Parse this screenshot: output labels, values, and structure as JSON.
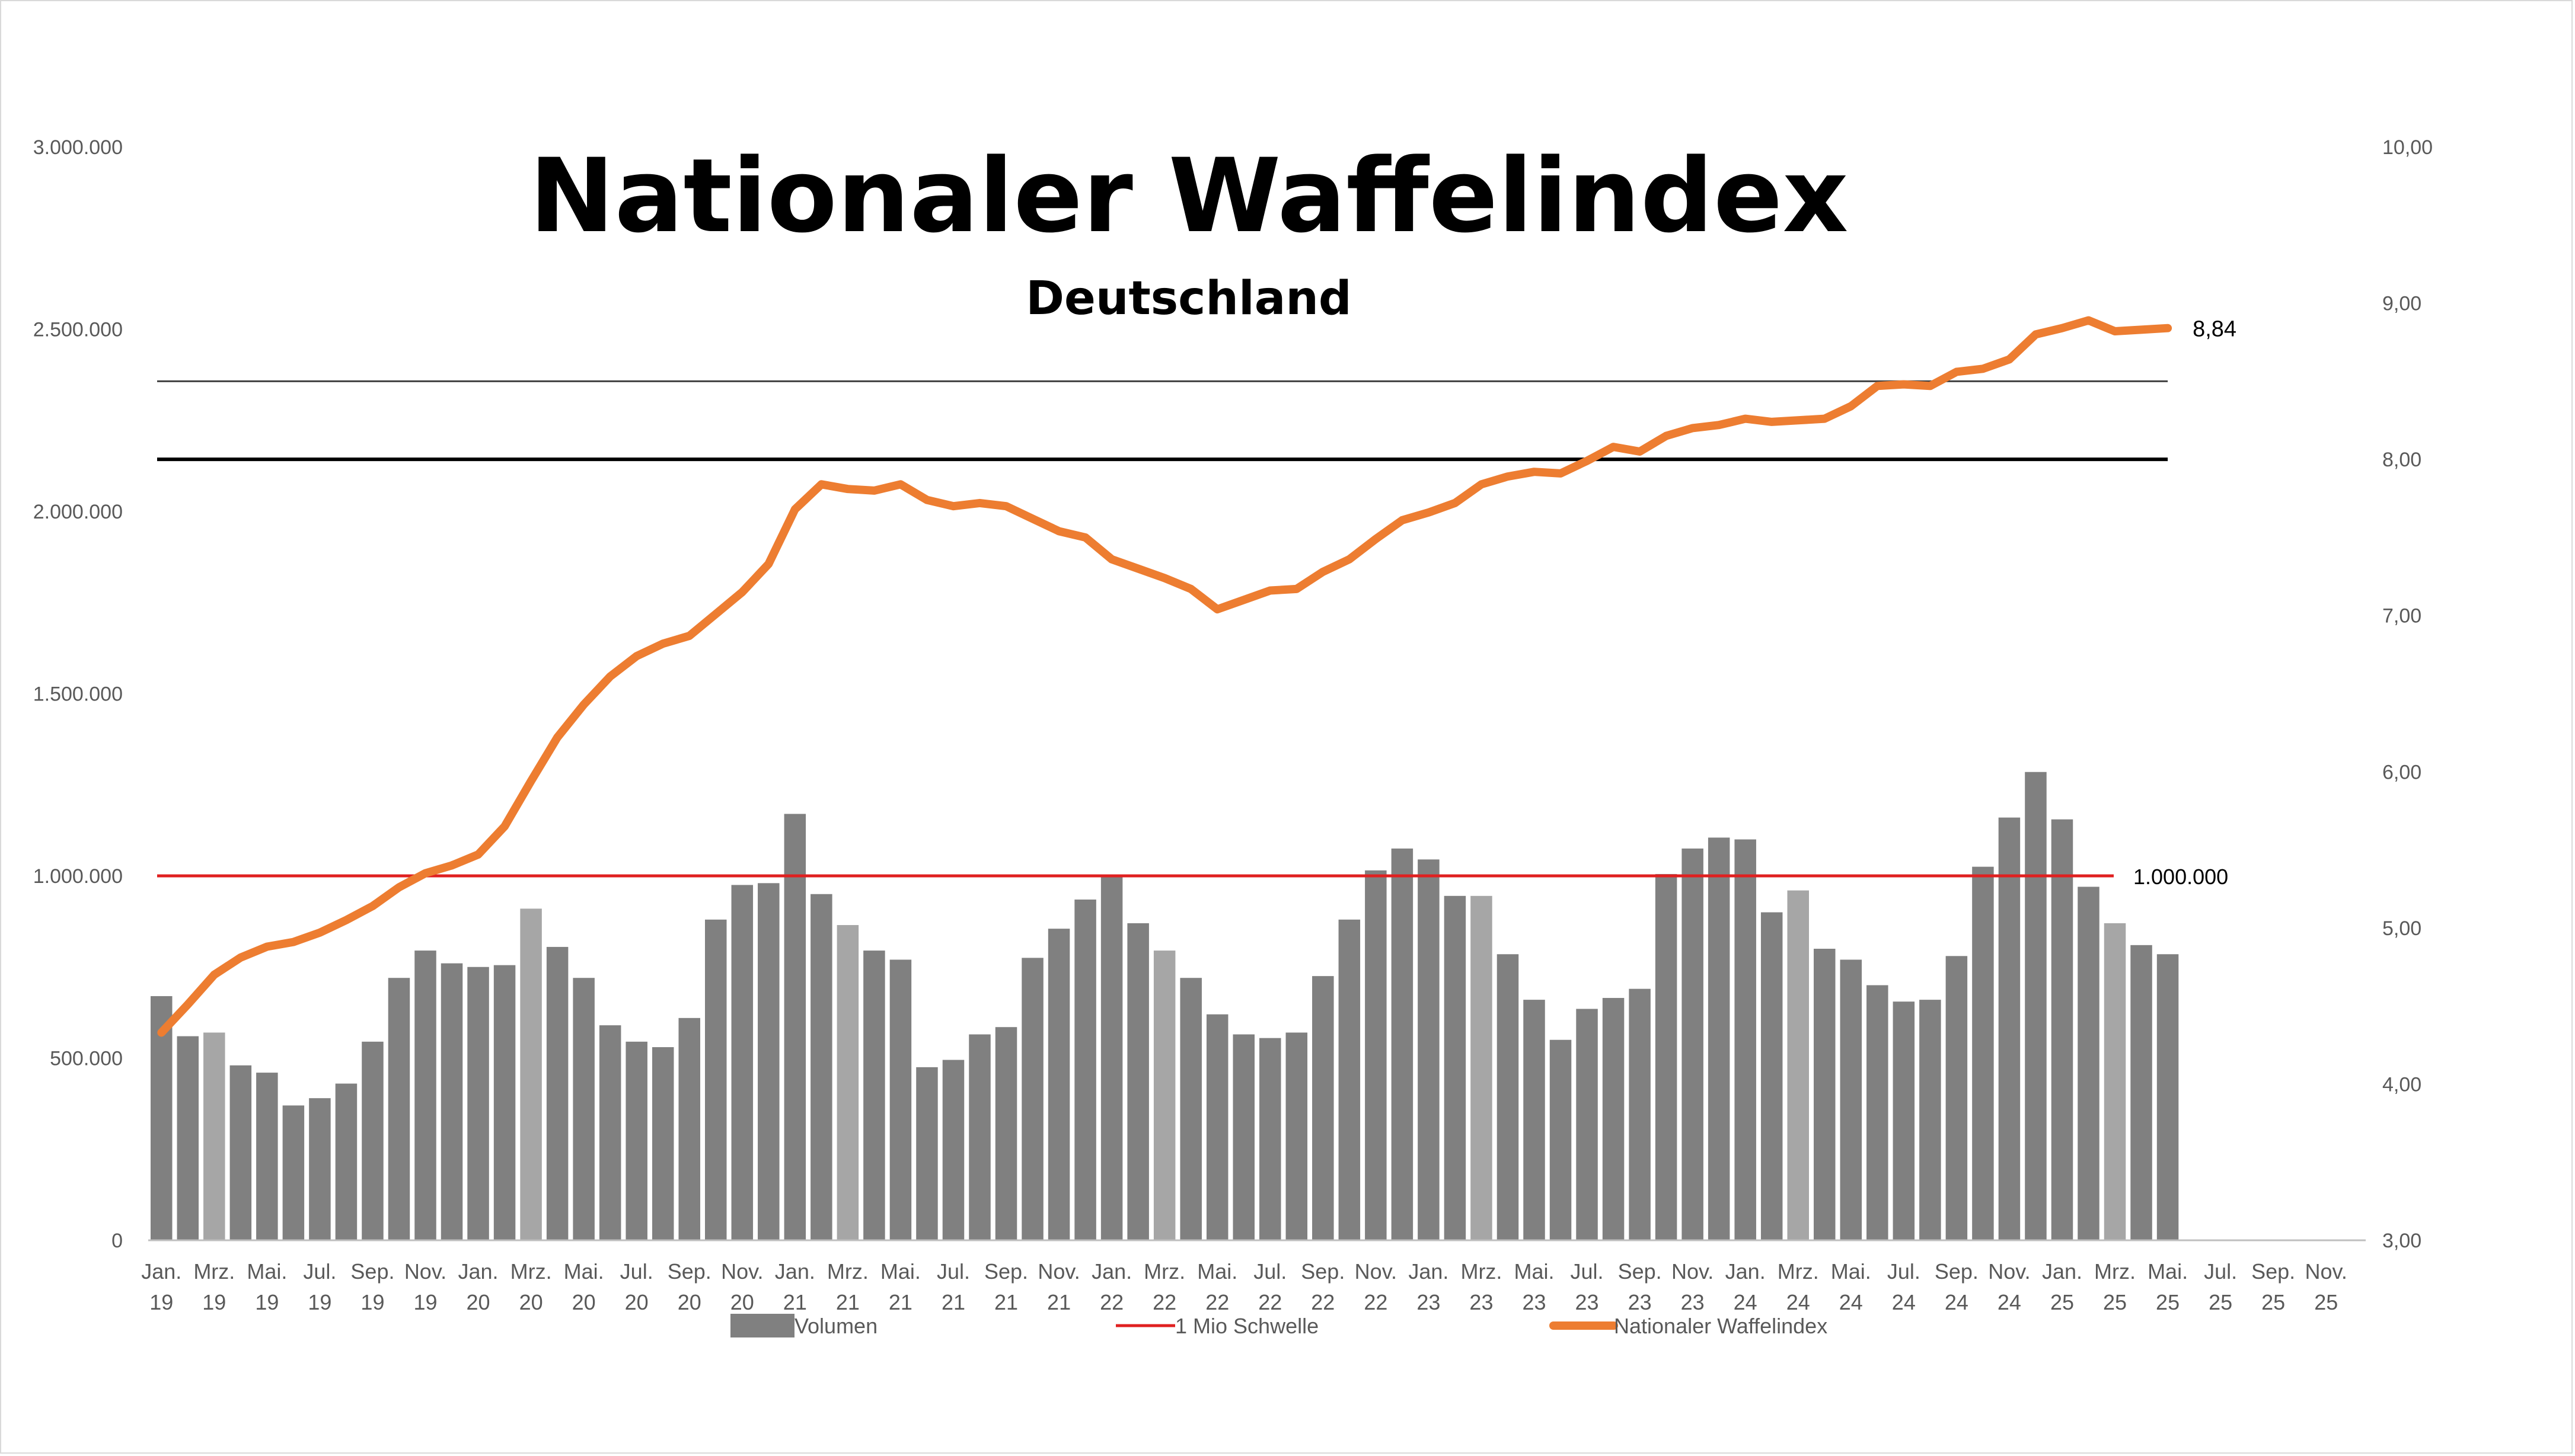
{
  "chart_data": {
    "type": "bar",
    "title": "Nationaler Waffelindex",
    "subtitle": "Deutschland",
    "x_tick_labels": [
      [
        "Jan.",
        "19"
      ],
      [
        "Mrz.",
        "19"
      ],
      [
        "Mai.",
        "19"
      ],
      [
        "Jul.",
        "19"
      ],
      [
        "Sep.",
        "19"
      ],
      [
        "Nov.",
        "19"
      ],
      [
        "Jan.",
        "20"
      ],
      [
        "Mrz.",
        "20"
      ],
      [
        "Mai.",
        "20"
      ],
      [
        "Jul.",
        "20"
      ],
      [
        "Sep.",
        "20"
      ],
      [
        "Nov.",
        "20"
      ],
      [
        "Jan.",
        "21"
      ],
      [
        "Mrz.",
        "21"
      ],
      [
        "Mai.",
        "21"
      ],
      [
        "Jul.",
        "21"
      ],
      [
        "Sep.",
        "21"
      ],
      [
        "Nov.",
        "21"
      ],
      [
        "Jan.",
        "22"
      ],
      [
        "Mrz.",
        "22"
      ],
      [
        "Mai.",
        "22"
      ],
      [
        "Jul.",
        "22"
      ],
      [
        "Sep.",
        "22"
      ],
      [
        "Nov.",
        "22"
      ],
      [
        "Jan.",
        "23"
      ],
      [
        "Mrz.",
        "23"
      ],
      [
        "Mai.",
        "23"
      ],
      [
        "Jul.",
        "23"
      ],
      [
        "Sep.",
        "23"
      ],
      [
        "Nov.",
        "23"
      ],
      [
        "Jan.",
        "24"
      ],
      [
        "Mrz.",
        "24"
      ],
      [
        "Mai.",
        "24"
      ],
      [
        "Jul.",
        "24"
      ],
      [
        "Sep.",
        "24"
      ],
      [
        "Nov.",
        "24"
      ],
      [
        "Jan.",
        "25"
      ],
      [
        "Mrz.",
        "25"
      ],
      [
        "Mai.",
        "25"
      ],
      [
        "Jul.",
        "25"
      ],
      [
        "Sep.",
        "25"
      ],
      [
        "Nov.",
        "25"
      ]
    ],
    "y_left": {
      "min": 0,
      "max": 3000000,
      "ticks": [
        "0",
        "500.000",
        "1.000.000",
        "1.500.000",
        "2.000.000",
        "2.500.000",
        "3.000.000"
      ]
    },
    "y_right": {
      "min": 3,
      "max": 10,
      "ticks": [
        "3,00",
        "4,00",
        "5,00",
        "6,00",
        "7,00",
        "8,00",
        "9,00",
        "10,00"
      ]
    },
    "months_total": 84,
    "series": [
      {
        "name": "Volumen",
        "type": "bar",
        "axis": "left",
        "color": "#808080",
        "highlight_color": "#a6a6a6",
        "highlight_indices": [
          2,
          14,
          26,
          38,
          50,
          62,
          74
        ],
        "values": [
          670000,
          560000,
          570000,
          480000,
          460000,
          370000,
          390000,
          430000,
          545000,
          720000,
          795000,
          760000,
          750000,
          755000,
          910000,
          805000,
          720000,
          590000,
          545000,
          530000,
          610000,
          880000,
          975000,
          980000,
          1170000,
          950000,
          865000,
          795000,
          770000,
          475000,
          495000,
          565000,
          585000,
          775000,
          855000,
          935000,
          1000000,
          870000,
          795000,
          720000,
          620000,
          565000,
          555000,
          570000,
          725000,
          880000,
          1015000,
          1075000,
          1045000,
          945000,
          945000,
          785000,
          660000,
          550000,
          635000,
          665000,
          690000,
          1005000,
          1075000,
          1105000,
          1100000,
          900000,
          960000,
          800000,
          770000,
          700000,
          655000,
          660000,
          780000,
          1025000,
          1160000,
          1285000,
          1155000,
          970000,
          870000,
          810000,
          785000
        ]
      },
      {
        "name": "1 Mio Schwelle",
        "type": "line",
        "axis": "left",
        "color": "#e02020",
        "value": 1000000,
        "label": "1.000.000"
      },
      {
        "name": "Nationaler Waffelindex",
        "type": "line",
        "axis": "right",
        "color": "#ed7d31",
        "values": [
          4.33,
          4.51,
          4.7,
          4.81,
          4.88,
          4.91,
          4.97,
          5.05,
          5.14,
          5.26,
          5.35,
          5.4,
          5.47,
          5.65,
          5.94,
          6.22,
          6.43,
          6.61,
          6.74,
          6.82,
          6.87,
          7.01,
          7.15,
          7.33,
          7.68,
          7.84,
          7.81,
          7.8,
          7.84,
          7.74,
          7.7,
          7.72,
          7.7,
          7.62,
          7.54,
          7.5,
          7.36,
          7.3,
          7.24,
          7.17,
          7.04,
          7.1,
          7.16,
          7.17,
          7.28,
          7.36,
          7.49,
          7.61,
          7.66,
          7.72,
          7.84,
          7.89,
          7.92,
          7.91,
          7.99,
          8.08,
          8.05,
          8.15,
          8.2,
          8.22,
          8.26,
          8.24,
          8.25,
          8.26,
          8.34,
          8.47,
          8.48,
          8.47,
          8.56,
          8.58,
          8.64,
          8.8,
          8.84,
          8.89,
          8.82,
          8.83,
          8.84
        ],
        "end_label": "8,84"
      }
    ],
    "reference_lines": [
      {
        "name": "upper-black-line",
        "axis": "right",
        "value": 8.5,
        "color": "#404040"
      },
      {
        "name": "lower-black-line",
        "axis": "right",
        "value": 8.0,
        "color": "#000000"
      }
    ],
    "legend": {
      "position": "bottom",
      "items": [
        {
          "label": "Volumen",
          "color": "#808080",
          "kind": "bar"
        },
        {
          "label": "1 Mio Schwelle",
          "color": "#e02020",
          "kind": "line"
        },
        {
          "label": "Nationaler Waffelindex",
          "color": "#ed7d31",
          "kind": "thick-line"
        }
      ]
    }
  }
}
